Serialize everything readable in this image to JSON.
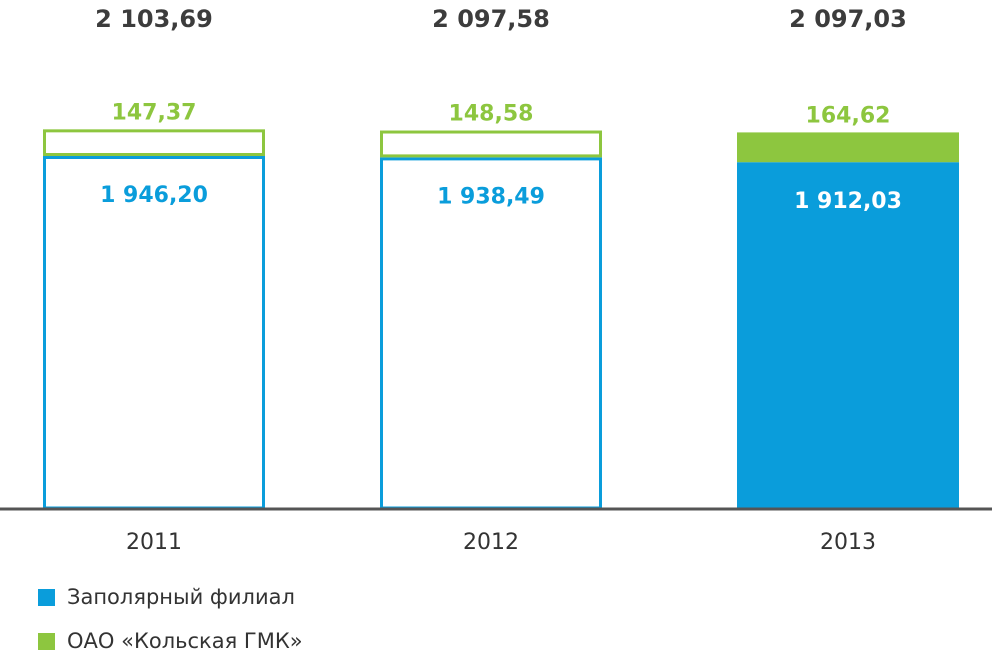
{
  "chart_data": {
    "type": "bar",
    "stacked": true,
    "categories": [
      "2011",
      "2012",
      "2013"
    ],
    "totals": [
      "2 103,69",
      "2 097,58",
      "2 097,03"
    ],
    "series": [
      {
        "name": "Заполярный филиал",
        "values": [
          1946.2,
          1938.49,
          1912.03
        ],
        "labels": [
          "1 946,20",
          "1 938,49",
          "1 912,03"
        ],
        "color": "#0a9ddb"
      },
      {
        "name": "ОАО «Кольская ГМК»",
        "values": [
          147.37,
          148.58,
          164.62
        ],
        "labels": [
          "147,37",
          "148,58",
          "164,62"
        ],
        "color": "#8dc63f"
      }
    ],
    "filled": [
      false,
      false,
      true
    ],
    "ylim": [
      0,
      2200
    ],
    "title": "",
    "xlabel": "",
    "ylabel": "",
    "grid": false,
    "legend_position": "bottom-left",
    "colors": {
      "axis": "#555555",
      "total_label": "#3c3c3c",
      "category_label": "#333333",
      "filled_bar_label": "#ffffff"
    }
  }
}
